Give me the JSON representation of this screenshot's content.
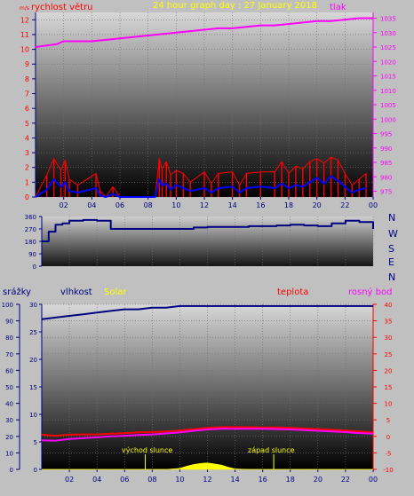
{
  "header": {
    "title": "24 hour graph day : 27 January 2018",
    "left_label": "rychlost větru",
    "right_label": "tlak"
  },
  "colors": {
    "background": "#c0c0c0",
    "wind": "#ff0000",
    "gust": "#0000ff",
    "pressure": "#ff00ff",
    "direction": "#000080",
    "humidity": "#000080",
    "temperature": "#ff0000",
    "dewpoint": "#ff00ff",
    "solar": "#ffff00"
  },
  "x_ticks": [
    "02",
    "04",
    "06",
    "08",
    "10",
    "12",
    "14",
    "16",
    "18",
    "20",
    "22",
    "00"
  ],
  "wind_axis": {
    "ticks": [
      "0",
      "1",
      "2",
      "3",
      "4",
      "5",
      "6",
      "7",
      "8",
      "9",
      "10",
      "11",
      "12"
    ],
    "unit_label": "m/s"
  },
  "pressure_axis": {
    "ticks": [
      "975",
      "980",
      "985",
      "990",
      "995",
      "1000",
      "1005",
      "1010",
      "1015",
      "1020",
      "1025",
      "1030",
      "1035"
    ]
  },
  "direction_axis": {
    "ticks": [
      "0",
      "90",
      "180",
      "270",
      "360"
    ],
    "compass": [
      "N",
      "W",
      "S",
      "E",
      "N"
    ]
  },
  "bottom_header": {
    "rain": "srážky",
    "humidity": "vlhkost",
    "solar": "Solar",
    "temperature": "teplota",
    "dewpoint": "rosný bod"
  },
  "rain_axis": {
    "ticks": [
      "0",
      "5",
      "10",
      "15",
      "20",
      "25",
      "30"
    ]
  },
  "humidity_axis": {
    "ticks": [
      "0",
      "10",
      "20",
      "30",
      "40",
      "50",
      "60",
      "70",
      "80",
      "90",
      "100"
    ]
  },
  "temperature_axis": {
    "ticks": [
      "-10",
      "-5",
      "0",
      "5",
      "10",
      "15",
      "20",
      "25",
      "30",
      "35",
      "40"
    ]
  },
  "annotations": {
    "sunrise": "východ slunce",
    "sunset": "západ slunce"
  },
  "chart_data": [
    {
      "type": "line",
      "title": "24 hour graph day : 27 January 2018",
      "x_unit": "hour",
      "x_range": [
        0,
        24
      ],
      "series": [
        {
          "name": "rychlost větru",
          "axis": "left",
          "ylim": [
            0,
            12.5
          ],
          "x": [
            0,
            0.8,
            1.3,
            1.8,
            2.1,
            2.4,
            3,
            4.3,
            4.6,
            5,
            5.5,
            6,
            8.5,
            8.8,
            9,
            9.3,
            9.6,
            10,
            10.5,
            11,
            12,
            12.5,
            13,
            14,
            14.5,
            15,
            16,
            17,
            17.5,
            18,
            18.5,
            19,
            19.5,
            20,
            20.5,
            21,
            21.5,
            22,
            22.5,
            23,
            23.5
          ],
          "values": [
            0,
            1.5,
            2.6,
            1.8,
            2.5,
            1.2,
            0.8,
            1.6,
            0.4,
            0,
            0.7,
            0,
            0,
            2.6,
            1.9,
            2.4,
            1.5,
            1.8,
            1.6,
            1.0,
            1.7,
            0.9,
            1.6,
            1.7,
            0.8,
            1.6,
            1.7,
            1.7,
            2.4,
            1.6,
            2.1,
            1.9,
            2.4,
            2.6,
            2.3,
            2.7,
            2.5,
            1.6,
            0.8,
            1.2,
            1.6
          ]
        },
        {
          "name": "",
          "axis": "left",
          "ylim": [
            0,
            12.5
          ],
          "x": [
            0,
            0.8,
            1.3,
            1.8,
            2.1,
            2.4,
            3,
            4.3,
            4.6,
            5,
            5.5,
            6,
            8.5,
            8.8,
            9,
            9.3,
            9.6,
            10,
            10.5,
            11,
            12,
            12.5,
            13,
            14,
            14.5,
            15,
            16,
            17,
            17.5,
            18,
            18.5,
            19,
            19.5,
            20,
            20.5,
            21,
            21.5,
            22,
            22.5,
            23,
            23.5
          ],
          "values": [
            0,
            0.5,
            1.2,
            0.7,
            1.0,
            0.4,
            0.3,
            0.6,
            0.1,
            0,
            0.2,
            0,
            0,
            1.2,
            0.8,
            0.9,
            0.5,
            0.8,
            0.6,
            0.4,
            0.6,
            0.3,
            0.6,
            0.7,
            0.3,
            0.6,
            0.7,
            0.6,
            0.9,
            0.6,
            0.8,
            0.7,
            1.0,
            1.3,
            0.9,
            1.4,
            1.1,
            0.7,
            0.3,
            0.5,
            0.6
          ]
        },
        {
          "name": "tlak",
          "axis": "right",
          "ylim": [
            973,
            1037
          ],
          "x": [
            0,
            1.5,
            2,
            4,
            5,
            6,
            7,
            8,
            9,
            10,
            11,
            12,
            13,
            14,
            15,
            16,
            17,
            18,
            19,
            20,
            21,
            22,
            23,
            24
          ],
          "values": [
            1025,
            1026,
            1027,
            1027,
            1027.5,
            1028,
            1028.5,
            1029,
            1029.5,
            1030,
            1030.5,
            1031,
            1031.5,
            1031.5,
            1032,
            1032.5,
            1032.5,
            1033,
            1033.5,
            1034,
            1034,
            1034.5,
            1035,
            1035
          ]
        }
      ]
    },
    {
      "type": "line",
      "x_range": [
        0,
        24
      ],
      "ylim": [
        0,
        360
      ],
      "series": [
        {
          "name": "",
          "x": [
            0,
            0.3,
            0.5,
            1,
            1.5,
            2,
            2.5,
            3,
            4,
            4.5,
            5,
            6,
            7,
            8,
            9,
            10,
            11,
            12,
            13,
            14,
            15,
            16,
            17,
            18,
            19,
            20,
            21,
            22,
            23,
            24
          ],
          "values": [
            180,
            180,
            250,
            300,
            310,
            330,
            330,
            335,
            330,
            330,
            270,
            270,
            270,
            270,
            270,
            270,
            280,
            285,
            285,
            285,
            290,
            290,
            295,
            300,
            295,
            290,
            310,
            330,
            320,
            270
          ]
        }
      ]
    },
    {
      "type": "line",
      "x_range": [
        0,
        24
      ],
      "series": [
        {
          "name": "vlhkost",
          "axis": "left",
          "ylim": [
            0,
            100
          ],
          "x": [
            0,
            1,
            2,
            3,
            4,
            5,
            6,
            7,
            8,
            9,
            10,
            11,
            12,
            13,
            14,
            15,
            16,
            17,
            18,
            19,
            20,
            21,
            22,
            23,
            24
          ],
          "values": [
            91,
            92,
            93,
            94,
            95,
            96,
            97,
            97,
            98,
            98,
            99,
            99,
            99,
            99,
            99,
            99,
            99,
            99,
            99,
            99,
            99,
            99,
            99,
            99,
            99
          ]
        },
        {
          "name": "teplota",
          "axis": "right",
          "ylim": [
            -10,
            40
          ],
          "x": [
            0,
            1,
            2,
            3,
            4,
            5,
            6,
            7,
            8,
            9,
            10,
            11,
            12,
            13,
            14,
            15,
            16,
            17,
            18,
            19,
            20,
            21,
            22,
            23,
            24
          ],
          "values": [
            0.5,
            0.2,
            0.5,
            0.6,
            0.6,
            0.8,
            1.0,
            1.2,
            1.3,
            1.5,
            1.8,
            2.2,
            2.6,
            2.8,
            2.8,
            2.8,
            2.7,
            2.7,
            2.6,
            2.4,
            2.2,
            2.0,
            1.8,
            1.5,
            1.2
          ]
        },
        {
          "name": "rosný bod",
          "axis": "right",
          "ylim": [
            -10,
            40
          ],
          "x": [
            0,
            1,
            2,
            3,
            4,
            5,
            6,
            7,
            8,
            9,
            10,
            11,
            12,
            13,
            14,
            15,
            16,
            17,
            18,
            19,
            20,
            21,
            22,
            23,
            24
          ],
          "values": [
            -1.2,
            -1.3,
            -0.8,
            -0.5,
            -0.3,
            0,
            0.2,
            0.4,
            0.6,
            0.9,
            1.2,
            1.7,
            2.1,
            2.3,
            2.3,
            2.3,
            2.3,
            2.2,
            2.1,
            1.9,
            1.7,
            1.5,
            1.3,
            1.0,
            0.8
          ]
        },
        {
          "name": "Solar",
          "axis": "rain",
          "ylim": [
            0,
            30
          ],
          "x": [
            0,
            7,
            8,
            9,
            10,
            10.5,
            11,
            11.5,
            12,
            12.5,
            13,
            13.5,
            14,
            15,
            16,
            24
          ],
          "values": [
            0,
            0,
            0,
            0,
            0.2,
            0.6,
            0.9,
            1.1,
            1.2,
            1.0,
            0.8,
            0.4,
            0.1,
            0,
            0,
            0
          ]
        }
      ]
    }
  ]
}
